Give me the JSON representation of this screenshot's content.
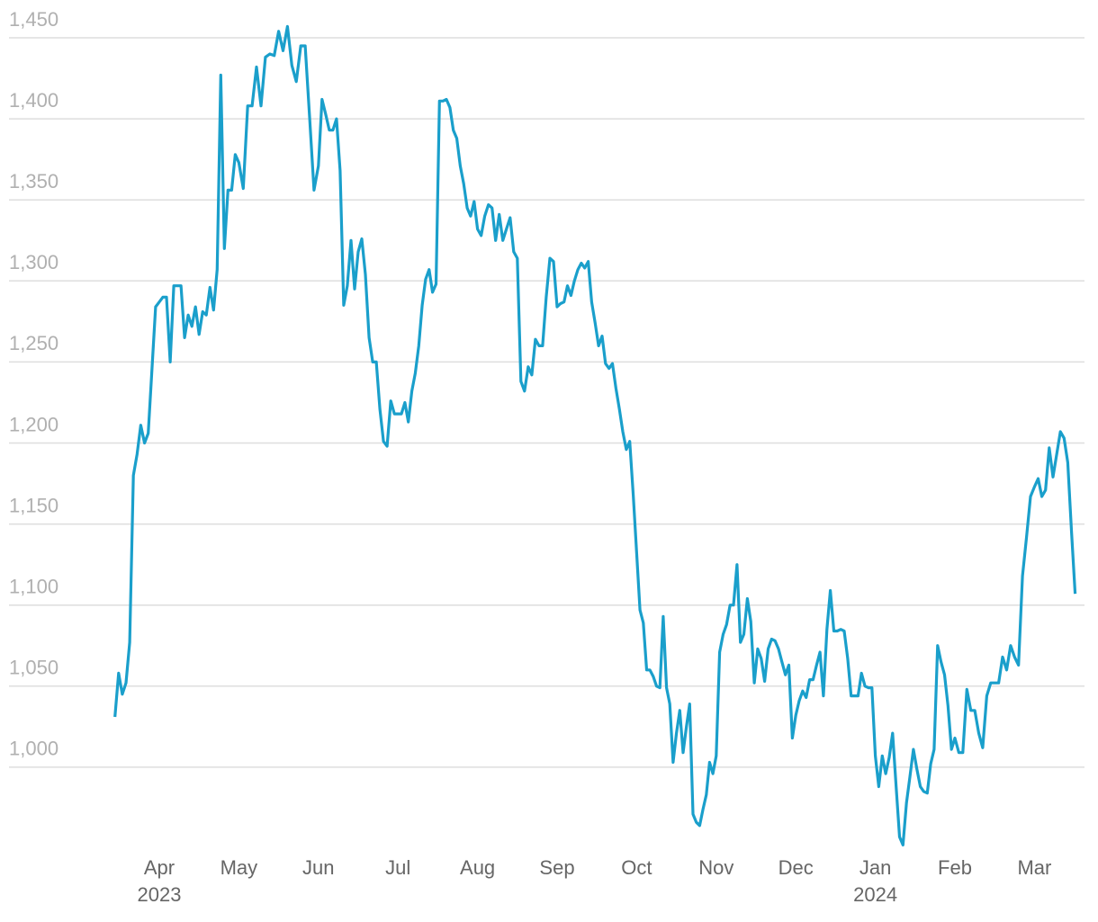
{
  "chart_data": {
    "type": "line",
    "color": "#1a9fcb",
    "grid": true,
    "ylim": [
      945,
      1460
    ],
    "yticks": [
      {
        "value": 1000,
        "label": "1,000"
      },
      {
        "value": 1050,
        "label": "1,050"
      },
      {
        "value": 1100,
        "label": "1,100"
      },
      {
        "value": 1150,
        "label": "1,150"
      },
      {
        "value": 1200,
        "label": "1,200"
      },
      {
        "value": 1250,
        "label": "1,250"
      },
      {
        "value": 1300,
        "label": "1,300"
      },
      {
        "value": 1350,
        "label": "1,350"
      },
      {
        "value": 1400,
        "label": "1,400"
      },
      {
        "value": 1450,
        "label": "1,450"
      }
    ],
    "categories": [
      null,
      "Apr",
      "May",
      "Jun",
      "Jul",
      "Aug",
      "Sep",
      "Oct",
      "Nov",
      "Dec",
      "Jan",
      "Feb",
      "Mar"
    ],
    "year_labels": [
      null,
      "2023",
      null,
      null,
      null,
      null,
      null,
      null,
      null,
      null,
      "2024",
      null,
      null
    ],
    "values": [
      [
        1031,
        1058,
        1045,
        1052,
        1077,
        1180,
        1193,
        1211,
        1200,
        1206,
        1245,
        1284
      ],
      [
        1287,
        1290,
        1290,
        1250,
        1297,
        1297,
        1297,
        1265,
        1279,
        1272,
        1284,
        1267,
        1281,
        1279,
        1296,
        1282,
        1307,
        1427,
        1320,
        1356,
        1356,
        1378
      ],
      [
        1373,
        1357,
        1408,
        1408,
        1432,
        1408,
        1438,
        1440,
        1439,
        1454,
        1442,
        1457,
        1433,
        1423,
        1445,
        1445,
        1401,
        1356
      ],
      [
        1371,
        1412,
        1403,
        1393,
        1393,
        1400,
        1368,
        1285,
        1297,
        1325,
        1295,
        1318,
        1326,
        1304,
        1265,
        1250,
        1250,
        1221,
        1201,
        1198,
        1226,
        1218
      ],
      [
        1218,
        1218,
        1225,
        1213,
        1232,
        1243,
        1260,
        1285,
        1301,
        1307,
        1293,
        1298,
        1411,
        1411,
        1412,
        1407,
        1393,
        1388,
        1371,
        1360,
        1345,
        1340,
        1349
      ],
      [
        1332,
        1328,
        1340,
        1347,
        1345,
        1325,
        1341,
        1325,
        1332,
        1339,
        1318,
        1314,
        1238,
        1232,
        1247,
        1242,
        1264,
        1260,
        1260,
        1290,
        1314,
        1312
      ],
      [
        1284,
        1286,
        1287,
        1297,
        1291,
        1300,
        1307,
        1311,
        1308,
        1312,
        1287,
        1274,
        1260,
        1266,
        1249,
        1246,
        1249,
        1234,
        1221,
        1207,
        1196,
        1201,
        1168
      ],
      [
        1132,
        1097,
        1089,
        1060,
        1060,
        1056,
        1050,
        1049,
        1093,
        1049,
        1039,
        1003,
        1021,
        1035,
        1009,
        1025,
        1039,
        971,
        966,
        964,
        974,
        983,
        1003,
        996
      ],
      [
        1007,
        1071,
        1082,
        1088,
        1100,
        1100,
        1125,
        1077,
        1082,
        1104,
        1090,
        1052,
        1073,
        1067,
        1053,
        1073,
        1079,
        1078,
        1073,
        1065,
        1057,
        1063,
        1018
      ],
      [
        1032,
        1041,
        1047,
        1043,
        1054,
        1054,
        1063,
        1071,
        1044,
        1085,
        1109,
        1084,
        1084,
        1085,
        1084,
        1067,
        1044,
        1044,
        1044,
        1058,
        1050,
        1049,
        1049
      ],
      [
        1007,
        988,
        1007,
        996,
        1006,
        1021,
        988,
        957,
        952,
        978,
        994,
        1011,
        999,
        988,
        985,
        984,
        1002,
        1011,
        1075,
        1065,
        1057,
        1038,
        1011
      ],
      [
        1018,
        1009,
        1009,
        1048,
        1035,
        1035,
        1021,
        1012,
        1044,
        1052,
        1052,
        1052,
        1068,
        1060,
        1075,
        1068,
        1063,
        1118,
        1142,
        1167
      ],
      [
        1173,
        1178,
        1167,
        1171,
        1197,
        1179,
        1193,
        1207,
        1203,
        1188,
        1146,
        1107
      ]
    ]
  }
}
